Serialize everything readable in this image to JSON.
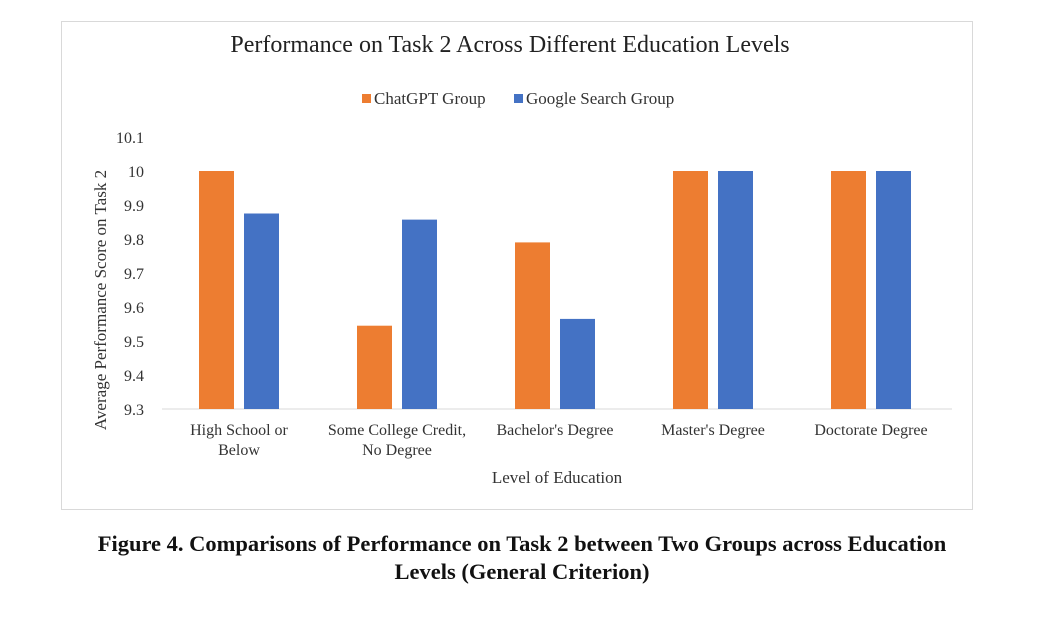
{
  "chart_data": {
    "type": "bar",
    "title": "Performance on Task 2 Across Different Education Levels",
    "xlabel": "Level of Education",
    "ylabel": "Average Performance Score on Task 2",
    "ylim": [
      9.3,
      10.1
    ],
    "yticks": [
      9.3,
      9.4,
      9.5,
      9.6,
      9.7,
      9.8,
      9.9,
      10,
      10.1
    ],
    "ytick_labels": [
      "9.3",
      "9.4",
      "9.5",
      "9.6",
      "9.7",
      "9.8",
      "9.9",
      "10",
      "10.1"
    ],
    "grid": false,
    "legend_position": "top-center",
    "categories": [
      [
        "High School or",
        "Below"
      ],
      [
        "Some College Credit,",
        "No Degree"
      ],
      [
        "Bachelor's Degree"
      ],
      [
        "Master's Degree"
      ],
      [
        "Doctorate Degree"
      ]
    ],
    "series": [
      {
        "name": "ChatGPT Group",
        "color": "#ED7D31",
        "values": [
          10,
          9.545,
          9.79,
          10,
          10
        ]
      },
      {
        "name": "Google Search Group",
        "color": "#4472C4",
        "values": [
          9.875,
          9.857,
          9.565,
          10,
          10
        ]
      }
    ]
  },
  "figure_caption": {
    "line1": "Figure 4. Comparisons of Performance on Task 2 between Two Groups across Education",
    "line2": "Levels (General Criterion)"
  }
}
